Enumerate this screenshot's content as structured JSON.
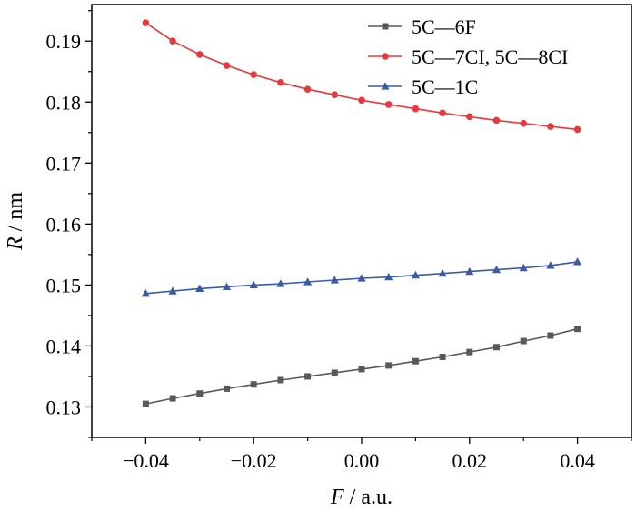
{
  "chart_data": {
    "type": "line",
    "xlabel": {
      "italic": "F",
      "unit": " / a.u."
    },
    "ylabel": {
      "italic": "R",
      "unit": " / nm"
    },
    "xlim": [
      -0.05,
      0.05
    ],
    "ylim": [
      0.125,
      0.196
    ],
    "xticks": [
      -0.04,
      -0.02,
      0.0,
      0.02,
      0.04
    ],
    "xtick_labels": [
      "−0.04",
      "−0.02",
      "0.00",
      "0.02",
      "0.04"
    ],
    "yticks": [
      0.13,
      0.14,
      0.15,
      0.16,
      0.17,
      0.18,
      0.19
    ],
    "ytick_labels": [
      "0.13",
      "0.14",
      "0.15",
      "0.16",
      "0.17",
      "0.18",
      "0.19"
    ],
    "grid": false,
    "legend_position": "top-right",
    "x": [
      -0.04,
      -0.035,
      -0.03,
      -0.025,
      -0.02,
      -0.015,
      -0.01,
      -0.005,
      0.0,
      0.005,
      0.01,
      0.015,
      0.02,
      0.025,
      0.03,
      0.035,
      0.04
    ],
    "series": [
      {
        "name": "5C—6F",
        "color": "#595959",
        "marker": "square",
        "values": [
          0.1305,
          0.1314,
          0.1322,
          0.133,
          0.1337,
          0.1344,
          0.135,
          0.1356,
          0.1362,
          0.1368,
          0.1375,
          0.1382,
          0.139,
          0.1398,
          0.1408,
          0.1417,
          0.1428
        ]
      },
      {
        "name": "5C—7CI, 5C—8CI",
        "color": "#e8383d",
        "marker": "circle",
        "values": [
          0.193,
          0.19,
          0.1878,
          0.186,
          0.1845,
          0.1832,
          0.1821,
          0.1812,
          0.1803,
          0.1796,
          0.1789,
          0.1782,
          0.1776,
          0.177,
          0.1765,
          0.176,
          0.1755
        ]
      },
      {
        "name": "5C—1C",
        "color": "#3b5ba5",
        "marker": "triangle",
        "values": [
          0.1486,
          0.149,
          0.1494,
          0.1497,
          0.15,
          0.1502,
          0.1505,
          0.1508,
          0.1511,
          0.1513,
          0.1516,
          0.1519,
          0.1522,
          0.1525,
          0.1528,
          0.1532,
          0.1538
        ]
      }
    ]
  }
}
